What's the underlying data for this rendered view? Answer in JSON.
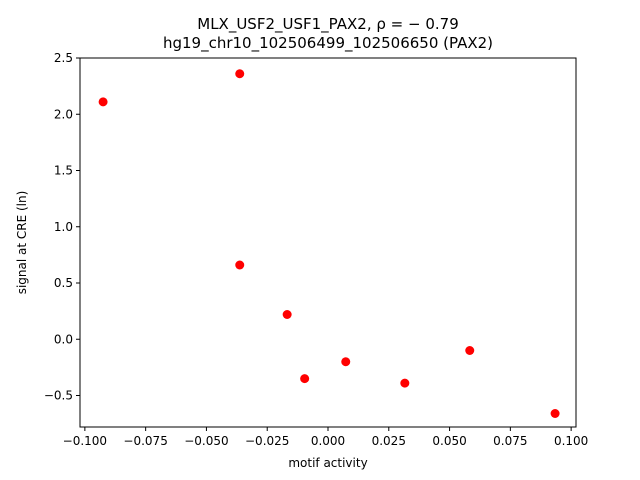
{
  "chart_data": {
    "type": "scatter",
    "title_line1": "MLX_USF2_USF1_PAX2, ρ = − 0.79",
    "title_line2": "hg19_chr10_102506499_102506650 (PAX2)",
    "xlabel": "motif activity",
    "ylabel": "signal at CRE (ln)",
    "xlim": [
      -0.102,
      0.102
    ],
    "ylim": [
      -0.78,
      2.5
    ],
    "xticks": [
      -0.1,
      -0.075,
      -0.05,
      -0.025,
      0.0,
      0.025,
      0.05,
      0.075,
      0.1
    ],
    "xtick_labels": [
      "−0.100",
      "−0.075",
      "−0.050",
      "−0.025",
      "0.000",
      "0.025",
      "0.050",
      "0.075",
      "0.100"
    ],
    "yticks": [
      -0.5,
      0.0,
      0.5,
      1.0,
      1.5,
      2.0,
      2.5
    ],
    "ytick_labels": [
      "−0.5",
      "0.0",
      "0.5",
      "1.0",
      "1.5",
      "2.0",
      "2.5"
    ],
    "grid": false,
    "legend": "none",
    "marker_color": "#ff0000",
    "points": [
      {
        "x": -0.0925,
        "y": 2.11
      },
      {
        "x": -0.0363,
        "y": 2.36
      },
      {
        "x": -0.0363,
        "y": 0.66
      },
      {
        "x": -0.0168,
        "y": 0.22
      },
      {
        "x": -0.0096,
        "y": -0.35
      },
      {
        "x": 0.0073,
        "y": -0.2
      },
      {
        "x": 0.0316,
        "y": -0.39
      },
      {
        "x": 0.0583,
        "y": -0.1
      },
      {
        "x": 0.0934,
        "y": -0.66
      }
    ]
  }
}
